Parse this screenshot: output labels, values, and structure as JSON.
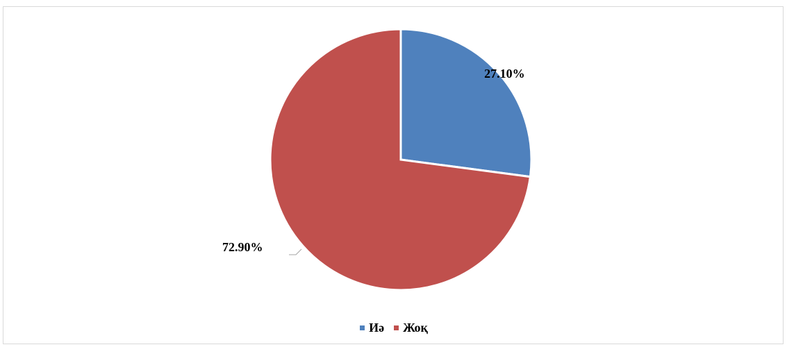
{
  "chart_data": {
    "type": "pie",
    "categories": [
      "Иә",
      "Жоқ"
    ],
    "values": [
      27.1,
      72.9
    ],
    "data_labels": [
      "27.10%",
      "72.90%"
    ],
    "colors": [
      "#4f81bd",
      "#c0504d"
    ],
    "legend_position": "bottom",
    "title": ""
  },
  "legend": {
    "items": [
      {
        "label": "Иә",
        "color": "#4f81bd"
      },
      {
        "label": "Жоқ",
        "color": "#c0504d"
      }
    ]
  }
}
